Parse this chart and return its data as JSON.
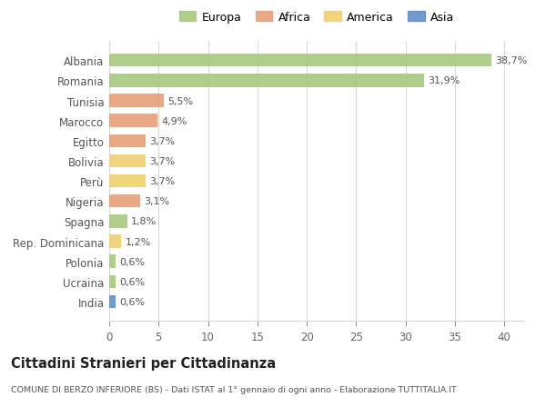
{
  "countries": [
    "Albania",
    "Romania",
    "Tunisia",
    "Marocco",
    "Egitto",
    "Bolivia",
    "Perù",
    "Nigeria",
    "Spagna",
    "Rep. Dominicana",
    "Polonia",
    "Ucraina",
    "India"
  ],
  "values": [
    38.7,
    31.9,
    5.5,
    4.9,
    3.7,
    3.7,
    3.7,
    3.1,
    1.8,
    1.2,
    0.6,
    0.6,
    0.6
  ],
  "labels": [
    "38,7%",
    "31,9%",
    "5,5%",
    "4,9%",
    "3,7%",
    "3,7%",
    "3,7%",
    "3,1%",
    "1,8%",
    "1,2%",
    "0,6%",
    "0,6%",
    "0,6%"
  ],
  "colors": [
    "#a8c97f",
    "#a8c97f",
    "#e8a078",
    "#e8a078",
    "#e8a078",
    "#f0d070",
    "#f0d070",
    "#e8a078",
    "#a8c97f",
    "#f0d070",
    "#a8c97f",
    "#a8c97f",
    "#6090c8"
  ],
  "legend_labels": [
    "Europa",
    "Africa",
    "America",
    "Asia"
  ],
  "legend_colors": [
    "#a8c97f",
    "#e8a078",
    "#f0d070",
    "#6090c8"
  ],
  "title": "Cittadini Stranieri per Cittadinanza",
  "subtitle": "COMUNE DI BERZO INFERIORE (BS) - Dati ISTAT al 1° gennaio di ogni anno - Elaborazione TUTTITALIA.IT",
  "xlim": [
    0,
    42
  ],
  "xticks": [
    0,
    5,
    10,
    15,
    20,
    25,
    30,
    35,
    40
  ],
  "bg_color": "#ffffff",
  "grid_color": "#d8d8d8",
  "bar_height": 0.65
}
